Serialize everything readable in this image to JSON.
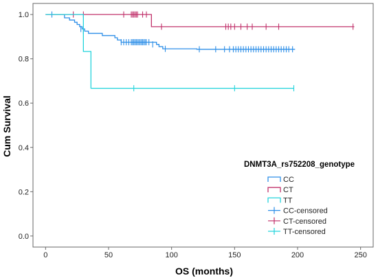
{
  "chart_data": {
    "type": "line",
    "title": "",
    "xlabel": "OS (months)",
    "ylabel": "Cum Survival",
    "xlim": [
      -10,
      260
    ],
    "ylim": [
      -0.05,
      1.05
    ],
    "xticks": [
      0,
      50,
      100,
      150,
      200,
      250
    ],
    "yticks": [
      0.0,
      0.2,
      0.4,
      0.6,
      0.8,
      1.0
    ],
    "grid": false,
    "legend": {
      "title": "DNMT3A_rs752208_genotype",
      "placement": "right",
      "entries": [
        {
          "label": "CC",
          "kind": "line",
          "series": "CC"
        },
        {
          "label": "CT",
          "kind": "line",
          "series": "CT"
        },
        {
          "label": "TT",
          "kind": "line",
          "series": "TT"
        },
        {
          "label": "CC-censored",
          "kind": "censor",
          "series": "CC"
        },
        {
          "label": "CT-censored",
          "kind": "censor",
          "series": "CT"
        },
        {
          "label": "TT-censored",
          "kind": "censor",
          "series": "TT"
        }
      ]
    },
    "series": [
      {
        "name": "CC",
        "color": "#2c8ee8",
        "steps": [
          [
            0,
            1.0
          ],
          [
            15,
            0.985
          ],
          [
            19,
            0.975
          ],
          [
            23,
            0.965
          ],
          [
            25,
            0.955
          ],
          [
            27,
            0.945
          ],
          [
            29,
            0.935
          ],
          [
            31,
            0.925
          ],
          [
            34,
            0.915
          ],
          [
            45,
            0.905
          ],
          [
            55,
            0.895
          ],
          [
            57,
            0.885
          ],
          [
            60,
            0.875
          ],
          [
            88,
            0.865
          ],
          [
            90,
            0.855
          ],
          [
            93,
            0.845
          ],
          [
            120,
            0.843
          ],
          [
            198,
            0.843
          ]
        ],
        "censored": [
          [
            5,
            1.0
          ],
          [
            28,
            0.935
          ],
          [
            30,
            0.925
          ],
          [
            60,
            0.875
          ],
          [
            62,
            0.875
          ],
          [
            64,
            0.875
          ],
          [
            66,
            0.875
          ],
          [
            68,
            0.875
          ],
          [
            69,
            0.875
          ],
          [
            70,
            0.875
          ],
          [
            71,
            0.875
          ],
          [
            72,
            0.875
          ],
          [
            73,
            0.875
          ],
          [
            74,
            0.875
          ],
          [
            75,
            0.875
          ],
          [
            76,
            0.875
          ],
          [
            77,
            0.875
          ],
          [
            78,
            0.875
          ],
          [
            79,
            0.875
          ],
          [
            80,
            0.875
          ],
          [
            82,
            0.875
          ],
          [
            85,
            0.865
          ],
          [
            95,
            0.845
          ],
          [
            122,
            0.843
          ],
          [
            135,
            0.843
          ],
          [
            142,
            0.843
          ],
          [
            146,
            0.843
          ],
          [
            149,
            0.843
          ],
          [
            151,
            0.843
          ],
          [
            153,
            0.843
          ],
          [
            155,
            0.843
          ],
          [
            157,
            0.843
          ],
          [
            159,
            0.843
          ],
          [
            161,
            0.843
          ],
          [
            163,
            0.843
          ],
          [
            165,
            0.843
          ],
          [
            167,
            0.843
          ],
          [
            169,
            0.843
          ],
          [
            171,
            0.843
          ],
          [
            173,
            0.843
          ],
          [
            175,
            0.843
          ],
          [
            177,
            0.843
          ],
          [
            179,
            0.843
          ],
          [
            181,
            0.843
          ],
          [
            183,
            0.843
          ],
          [
            185,
            0.843
          ],
          [
            187,
            0.843
          ],
          [
            189,
            0.843
          ],
          [
            191,
            0.843
          ],
          [
            193,
            0.843
          ],
          [
            196,
            0.843
          ]
        ]
      },
      {
        "name": "CT",
        "color": "#c0306a",
        "steps": [
          [
            0,
            1.0
          ],
          [
            84,
            1.0
          ],
          [
            84,
            0.945
          ],
          [
            245,
            0.945
          ]
        ],
        "censored": [
          [
            22,
            1.0
          ],
          [
            30,
            1.0
          ],
          [
            62,
            1.0
          ],
          [
            68,
            1.0
          ],
          [
            69,
            1.0
          ],
          [
            70,
            1.0
          ],
          [
            71,
            1.0
          ],
          [
            72,
            1.0
          ],
          [
            73,
            1.0
          ],
          [
            77,
            1.0
          ],
          [
            80,
            1.0
          ],
          [
            92,
            0.945
          ],
          [
            143,
            0.945
          ],
          [
            145,
            0.945
          ],
          [
            147,
            0.945
          ],
          [
            150,
            0.945
          ],
          [
            155,
            0.945
          ],
          [
            160,
            0.945
          ],
          [
            164,
            0.945
          ],
          [
            175,
            0.945
          ],
          [
            185,
            0.945
          ],
          [
            244,
            0.945
          ]
        ]
      },
      {
        "name": "TT",
        "color": "#22d3dc",
        "steps": [
          [
            0,
            1.0
          ],
          [
            30,
            1.0
          ],
          [
            30,
            0.833
          ],
          [
            36,
            0.833
          ],
          [
            36,
            0.667
          ],
          [
            197,
            0.667
          ]
        ],
        "censored": [
          [
            70,
            0.667
          ],
          [
            150,
            0.667
          ],
          [
            197,
            0.667
          ]
        ]
      }
    ]
  }
}
